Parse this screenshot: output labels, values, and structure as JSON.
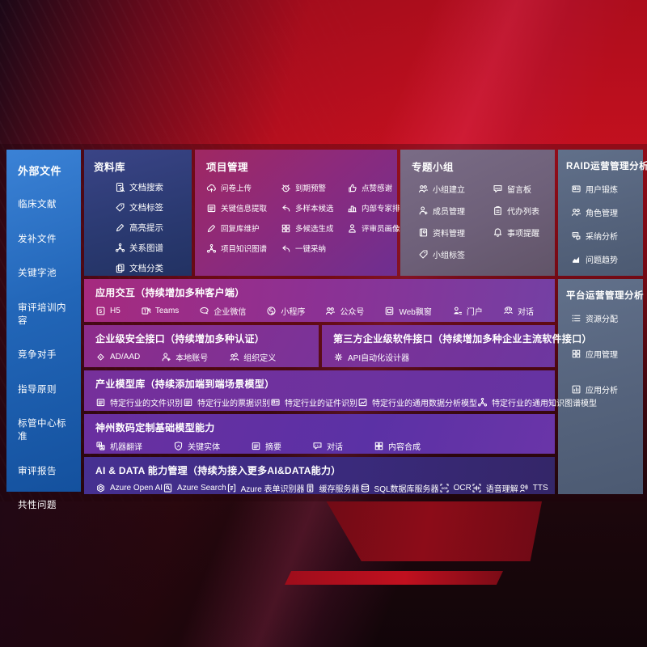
{
  "colors": {
    "background_red": "#c3101f",
    "sidebar_blue": "#2266b8",
    "repo_navy": "#2b3a72",
    "project_magenta": "#8c2a7c",
    "groups_mauve": "#6e6079",
    "ops_slate": "#55637c",
    "row_purple": "#7a3399",
    "ai_indigo": "#3a2a7c",
    "text": "#ffffff"
  },
  "sidebar": {
    "title": "外部文件",
    "items": [
      {
        "label": "临床文献"
      },
      {
        "label": "发补文件"
      },
      {
        "label": "关键字池"
      },
      {
        "label": "审评培训内容"
      },
      {
        "label": "竞争对手"
      },
      {
        "label": "指导原则"
      },
      {
        "label": "标管中心标准"
      },
      {
        "label": "审评报告"
      },
      {
        "label": "共性问题"
      }
    ]
  },
  "repo": {
    "title": "资料库",
    "items": [
      {
        "icon": "doc-search",
        "label": "文档搜索"
      },
      {
        "icon": "tag",
        "label": "文档标签"
      },
      {
        "icon": "pencil",
        "label": "高亮提示"
      },
      {
        "icon": "graph",
        "label": "关系图谱"
      },
      {
        "icon": "docs",
        "label": "文档分类"
      }
    ]
  },
  "project": {
    "title": "项目管理",
    "items": [
      {
        "icon": "cloud-up",
        "label": "问卷上传"
      },
      {
        "icon": "alarm",
        "label": "到期预警"
      },
      {
        "icon": "thumb",
        "label": "点赞感谢"
      },
      {
        "icon": "doc-lines",
        "label": "关键信息提取"
      },
      {
        "icon": "reply",
        "label": "多样本候选"
      },
      {
        "icon": "podium",
        "label": "内部专家排名"
      },
      {
        "icon": "pencil",
        "label": "回复库维护"
      },
      {
        "icon": "grid4",
        "label": "多候选生成"
      },
      {
        "icon": "person",
        "label": "评审员画像"
      },
      {
        "icon": "graph",
        "label": "项目知识图谱"
      },
      {
        "icon": "reply",
        "label": "一键采纳"
      }
    ]
  },
  "groups": {
    "title": "专题小组",
    "items": [
      {
        "icon": "people",
        "label": "小组建立"
      },
      {
        "icon": "bbs",
        "label": "留言板"
      },
      {
        "icon": "person-add",
        "label": "成员管理"
      },
      {
        "icon": "clipboard",
        "label": "代办列表"
      },
      {
        "icon": "book",
        "label": "资料管理"
      },
      {
        "icon": "bell",
        "label": "事项提醒"
      },
      {
        "icon": "tag",
        "label": "小组标签"
      }
    ]
  },
  "raid": {
    "title": "RAID运营管理分析",
    "items": [
      {
        "icon": "id-card",
        "label": "用户锻炼"
      },
      {
        "icon": "people",
        "label": "角色管理"
      },
      {
        "icon": "chat-qa",
        "label": "采纳分析"
      },
      {
        "icon": "trend",
        "label": "问题趋势"
      }
    ]
  },
  "platform": {
    "title": "平台运营管理分析",
    "items": [
      {
        "icon": "list",
        "label": "资源分配"
      },
      {
        "icon": "grid4",
        "label": "应用管理"
      },
      {
        "icon": "chart-box",
        "label": "应用分析"
      }
    ]
  },
  "interaction": {
    "title": "应用交互（持续增加多种客户端）",
    "items": [
      {
        "icon": "h5",
        "label": "H5"
      },
      {
        "icon": "teams",
        "label": "Teams"
      },
      {
        "icon": "wechat",
        "label": "企业微信"
      },
      {
        "icon": "miniprog",
        "label": "小程序"
      },
      {
        "icon": "people",
        "label": "公众号"
      },
      {
        "icon": "window",
        "label": "Web飘窗"
      },
      {
        "icon": "portal",
        "label": "门户"
      },
      {
        "icon": "chat-multi",
        "label": "对话"
      }
    ]
  },
  "security": {
    "title": "企业级安全接口（持续增加多种认证）",
    "items": [
      {
        "icon": "diamond",
        "label": "AD/AAD"
      },
      {
        "icon": "person-add",
        "label": "本地账号"
      },
      {
        "icon": "org",
        "label": "组织定义"
      }
    ]
  },
  "thirdparty": {
    "title": "第三方企业级软件接口（持续增加多种企业主流软件接口）",
    "items": [
      {
        "icon": "gear",
        "label": "API自动化设计器"
      }
    ]
  },
  "industry": {
    "title": "产业模型库（持续添加端到端场景模型）",
    "items": [
      {
        "icon": "doc-lines",
        "label": "特定行业的文件识别"
      },
      {
        "icon": "doc-lines",
        "label": "特定行业的票据识别"
      },
      {
        "icon": "id-card",
        "label": "特定行业的证件识别"
      },
      {
        "icon": "image-chart",
        "label": "特定行业的通用数据分析模型"
      },
      {
        "icon": "graph",
        "label": "特定行业的通用知识图谱模型"
      }
    ]
  },
  "base_models": {
    "title": "神州数码定制基础模型能力",
    "items": [
      {
        "icon": "translate",
        "label": "机器翻译"
      },
      {
        "icon": "shield-a",
        "label": "关键实体"
      },
      {
        "icon": "doc-lines",
        "label": "摘要"
      },
      {
        "icon": "chat",
        "label": "对话"
      },
      {
        "icon": "puzzle",
        "label": "内容合成"
      }
    ]
  },
  "ai_data": {
    "title": "AI & DATA 能力管理（持续为接入更多AI&DATA能力）",
    "items": [
      {
        "icon": "openai",
        "label": "Azure Open AI"
      },
      {
        "icon": "search-doc",
        "label": "Azure Search"
      },
      {
        "icon": "brackets-doc",
        "label": "Azure 表单识别器"
      },
      {
        "icon": "server",
        "label": "缓存服务器"
      },
      {
        "icon": "database",
        "label": "SQL数据库服务器"
      },
      {
        "icon": "ocr",
        "label": "OCR"
      },
      {
        "icon": "voice",
        "label": "语音理解"
      },
      {
        "icon": "tts",
        "label": "TTS"
      }
    ]
  }
}
